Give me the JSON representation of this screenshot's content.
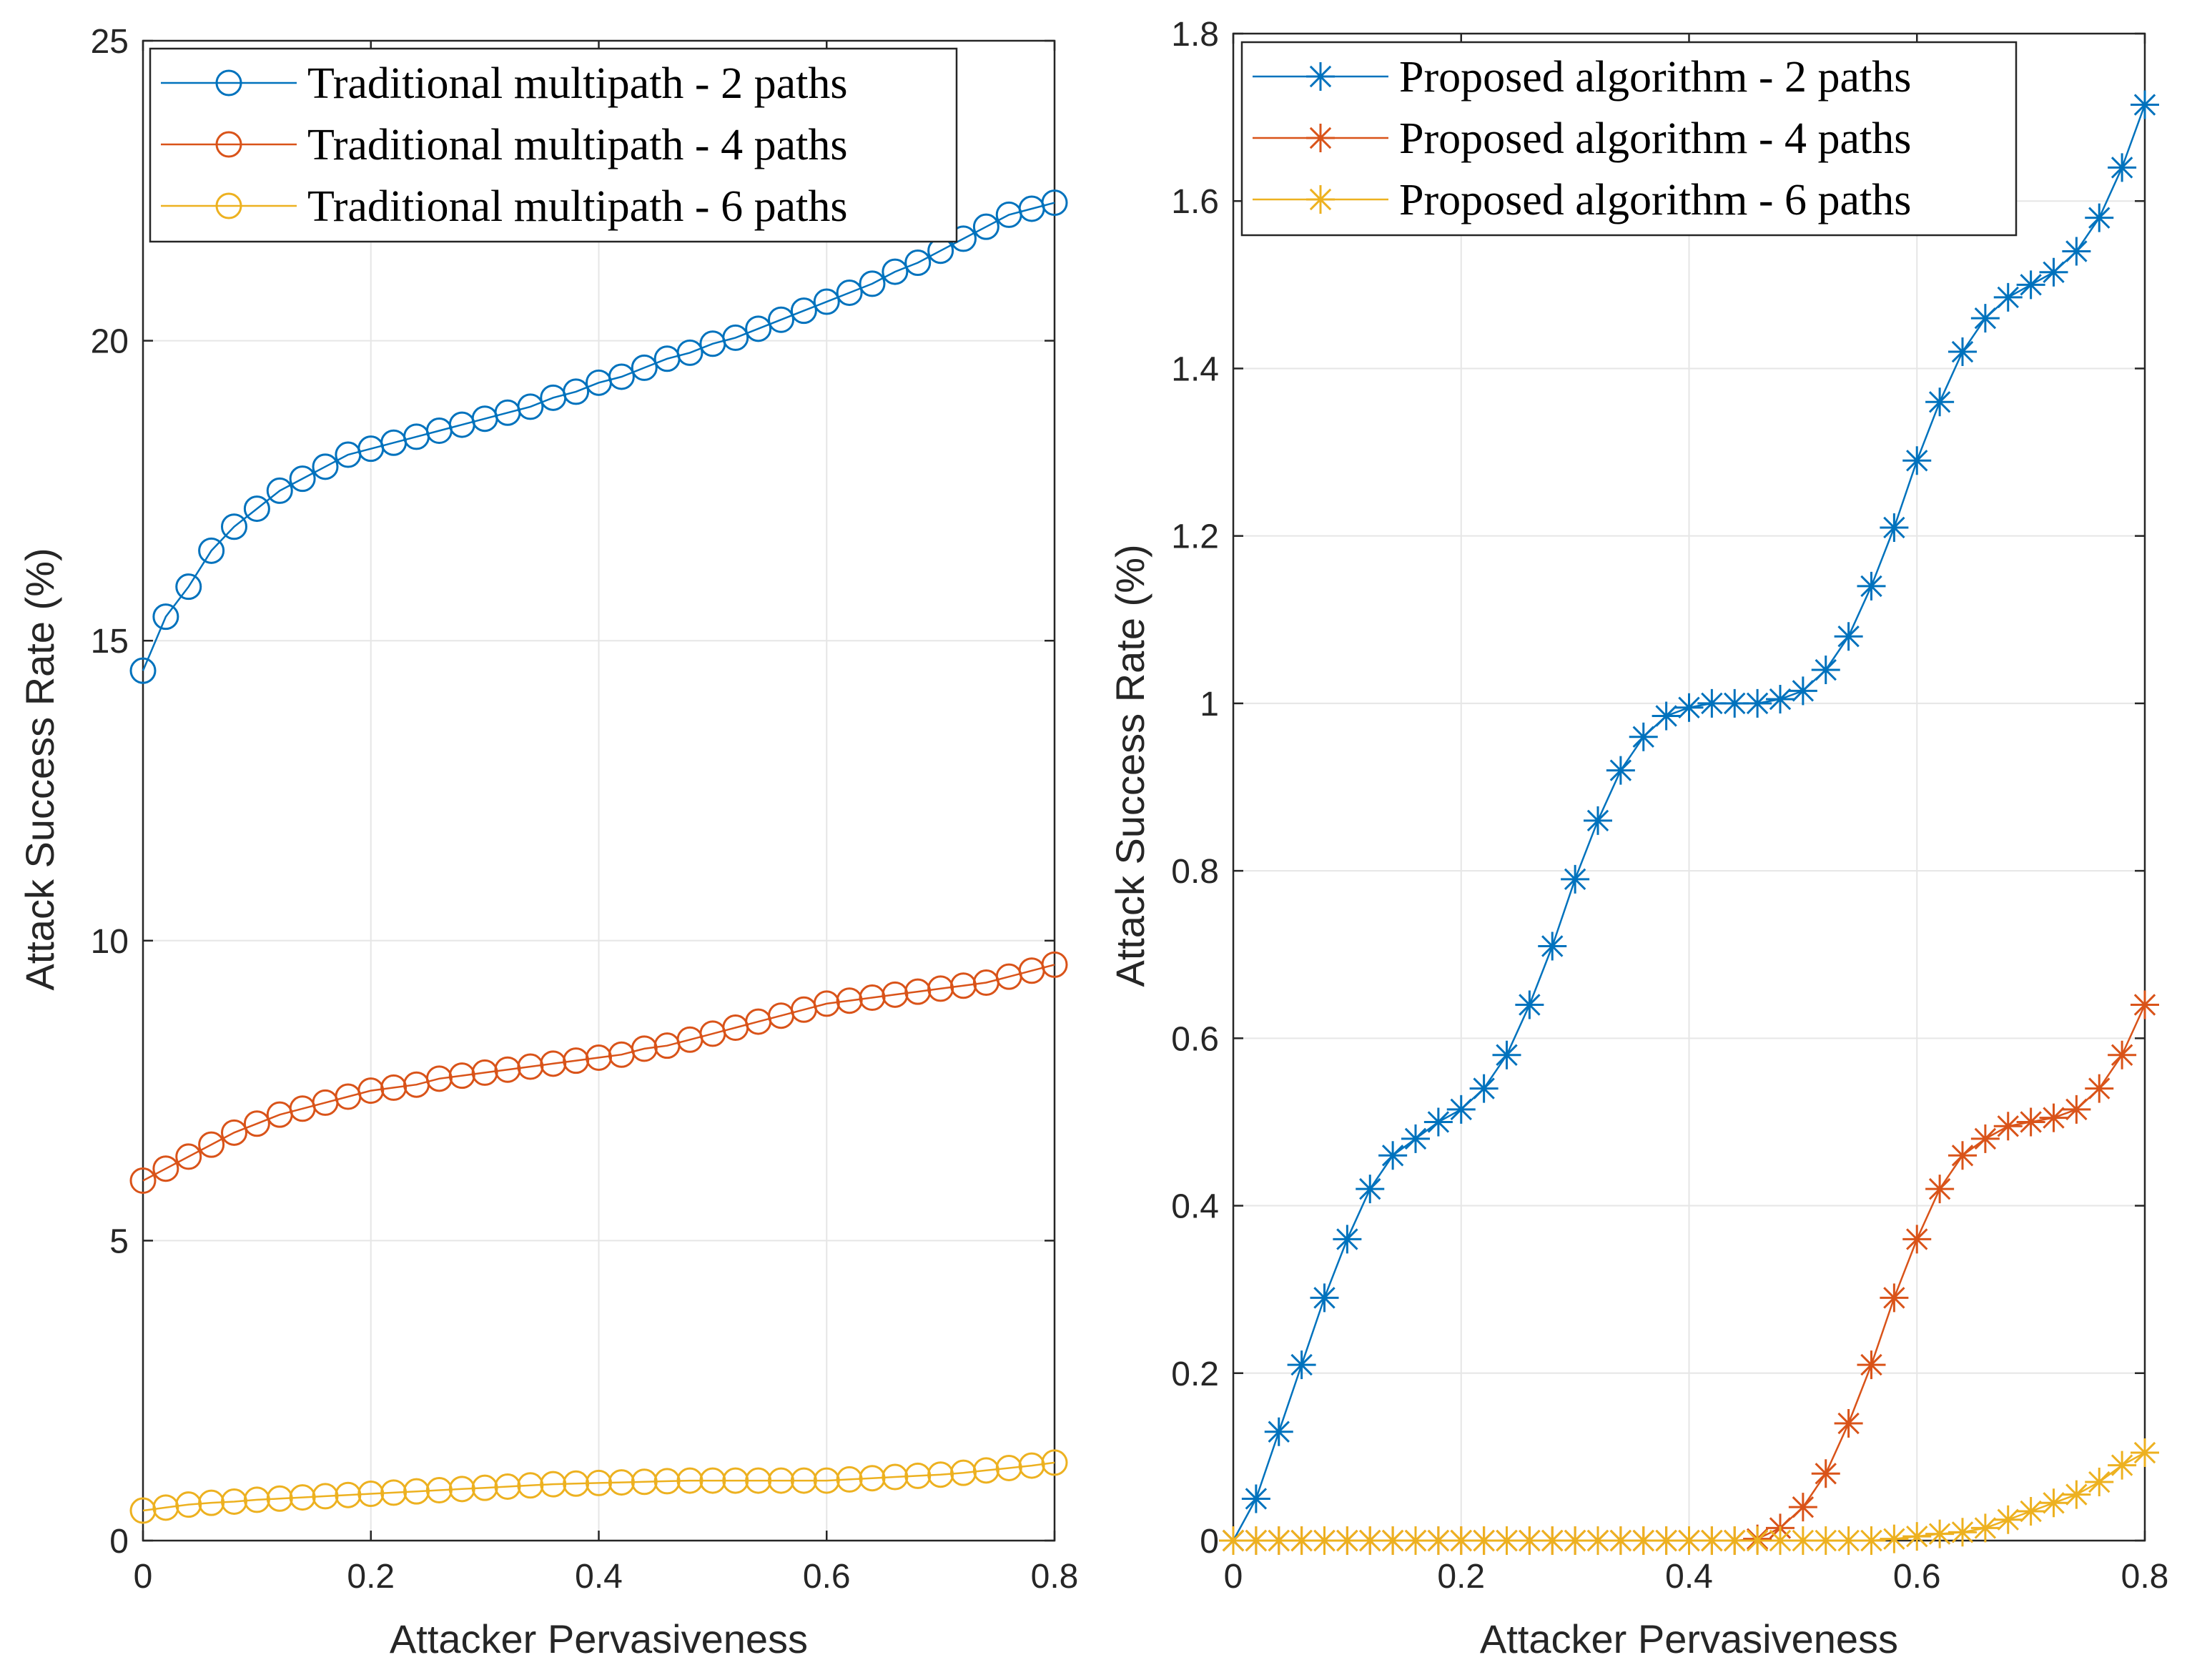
{
  "chart_data": [
    {
      "type": "line",
      "title": "",
      "xlabel": "Attacker Pervasiveness",
      "ylabel": "Attack Success Rate (%)",
      "xlim": [
        0,
        0.8
      ],
      "ylim": [
        0,
        25
      ],
      "xticks": [
        0,
        0.2,
        0.4,
        0.6,
        0.8
      ],
      "xtick_labels": [
        "0",
        "0.2",
        "0.4",
        "0.6",
        "0.8"
      ],
      "yticks": [
        0,
        5,
        10,
        15,
        20,
        25
      ],
      "ytick_labels": [
        "0",
        "5",
        "10",
        "15",
        "20",
        "25"
      ],
      "grid": true,
      "legend_position": "top-left",
      "marker": "circle",
      "x": [
        0,
        0.02,
        0.04,
        0.06,
        0.08,
        0.1,
        0.12,
        0.14,
        0.16,
        0.18,
        0.2,
        0.22,
        0.24,
        0.26,
        0.28,
        0.3,
        0.32,
        0.34,
        0.36,
        0.38,
        0.4,
        0.42,
        0.44,
        0.46,
        0.48,
        0.5,
        0.52,
        0.54,
        0.56,
        0.58,
        0.6,
        0.62,
        0.64,
        0.66,
        0.68,
        0.7,
        0.72,
        0.74,
        0.76,
        0.78,
        0.8
      ],
      "series": [
        {
          "name": "Traditional multipath  - 2 paths",
          "color": "#0072BD",
          "values": [
            14.5,
            15.4,
            15.9,
            16.5,
            16.9,
            17.2,
            17.5,
            17.7,
            17.9,
            18.1,
            18.2,
            18.3,
            18.4,
            18.5,
            18.6,
            18.7,
            18.8,
            18.9,
            19.05,
            19.15,
            19.3,
            19.4,
            19.55,
            19.7,
            19.8,
            19.95,
            20.05,
            20.2,
            20.35,
            20.5,
            20.65,
            20.8,
            20.95,
            21.15,
            21.3,
            21.5,
            21.7,
            21.9,
            22.1,
            22.2,
            22.3
          ]
        },
        {
          "name": "Traditional multipath - 4 paths",
          "color": "#D95319",
          "values": [
            6.0,
            6.2,
            6.4,
            6.6,
            6.8,
            6.95,
            7.1,
            7.2,
            7.3,
            7.4,
            7.5,
            7.55,
            7.6,
            7.7,
            7.75,
            7.8,
            7.85,
            7.9,
            7.95,
            8.0,
            8.05,
            8.1,
            8.2,
            8.25,
            8.35,
            8.45,
            8.55,
            8.65,
            8.75,
            8.85,
            8.95,
            9.0,
            9.05,
            9.1,
            9.15,
            9.2,
            9.25,
            9.3,
            9.4,
            9.5,
            9.6
          ]
        },
        {
          "name": "Traditional multipath  - 6 paths",
          "color": "#EDB120",
          "values": [
            0.5,
            0.55,
            0.6,
            0.63,
            0.65,
            0.68,
            0.7,
            0.72,
            0.74,
            0.76,
            0.78,
            0.8,
            0.82,
            0.84,
            0.86,
            0.88,
            0.9,
            0.92,
            0.94,
            0.95,
            0.96,
            0.97,
            0.98,
            0.99,
            1.0,
            1.0,
            1.0,
            1.0,
            1.0,
            1.0,
            1.0,
            1.02,
            1.04,
            1.06,
            1.08,
            1.1,
            1.13,
            1.17,
            1.21,
            1.25,
            1.3
          ]
        }
      ]
    },
    {
      "type": "line",
      "title": "",
      "xlabel": "Attacker Pervasiveness",
      "ylabel": "Attack Success Rate (%)",
      "xlim": [
        0,
        0.8
      ],
      "ylim": [
        0,
        1.8
      ],
      "xticks": [
        0,
        0.2,
        0.4,
        0.6,
        0.8
      ],
      "xtick_labels": [
        "0",
        "0.2",
        "0.4",
        "0.6",
        "0.8"
      ],
      "yticks": [
        0,
        0.2,
        0.4,
        0.6,
        0.8,
        1,
        1.2,
        1.4,
        1.6,
        1.8
      ],
      "ytick_labels": [
        "0",
        "0.2",
        "0.4",
        "0.6",
        "0.8",
        "1",
        "1.2",
        "1.4",
        "1.6",
        "1.8"
      ],
      "grid": true,
      "legend_position": "top-left",
      "marker": "asterisk",
      "x": [
        0,
        0.02,
        0.04,
        0.06,
        0.08,
        0.1,
        0.12,
        0.14,
        0.16,
        0.18,
        0.2,
        0.22,
        0.24,
        0.26,
        0.28,
        0.3,
        0.32,
        0.34,
        0.36,
        0.38,
        0.4,
        0.42,
        0.44,
        0.46,
        0.48,
        0.5,
        0.52,
        0.54,
        0.56,
        0.58,
        0.6,
        0.62,
        0.64,
        0.66,
        0.68,
        0.7,
        0.72,
        0.74,
        0.76,
        0.78,
        0.8
      ],
      "series": [
        {
          "name": "Proposed algorithm - 2 paths",
          "color": "#0072BD",
          "values": [
            0,
            0.05,
            0.13,
            0.21,
            0.29,
            0.36,
            0.42,
            0.46,
            0.48,
            0.5,
            0.515,
            0.54,
            0.58,
            0.64,
            0.71,
            0.79,
            0.86,
            0.92,
            0.96,
            0.985,
            0.995,
            1.0,
            1.0,
            1.0,
            1.005,
            1.015,
            1.04,
            1.08,
            1.14,
            1.21,
            1.29,
            1.36,
            1.42,
            1.46,
            1.485,
            1.5,
            1.515,
            1.54,
            1.58,
            1.64,
            1.715
          ]
        },
        {
          "name": "Proposed algorithm  - 4 paths",
          "color": "#D95319",
          "values": [
            0,
            0,
            0,
            0,
            0,
            0,
            0,
            0,
            0,
            0,
            0,
            0,
            0,
            0,
            0,
            0,
            0,
            0,
            0,
            0,
            0,
            0,
            0,
            0.002,
            0.015,
            0.04,
            0.08,
            0.14,
            0.21,
            0.29,
            0.36,
            0.42,
            0.46,
            0.48,
            0.495,
            0.5,
            0.505,
            0.515,
            0.54,
            0.58,
            0.64
          ]
        },
        {
          "name": "Proposed algorithm  - 6 paths",
          "color": "#EDB120",
          "values": [
            0,
            0,
            0,
            0,
            0,
            0,
            0,
            0,
            0,
            0,
            0,
            0,
            0,
            0,
            0,
            0,
            0,
            0,
            0,
            0,
            0,
            0,
            0,
            0,
            0,
            0,
            0,
            0,
            0,
            0.002,
            0.005,
            0.008,
            0.01,
            0.015,
            0.025,
            0.035,
            0.045,
            0.055,
            0.07,
            0.09,
            0.105
          ]
        }
      ]
    }
  ]
}
